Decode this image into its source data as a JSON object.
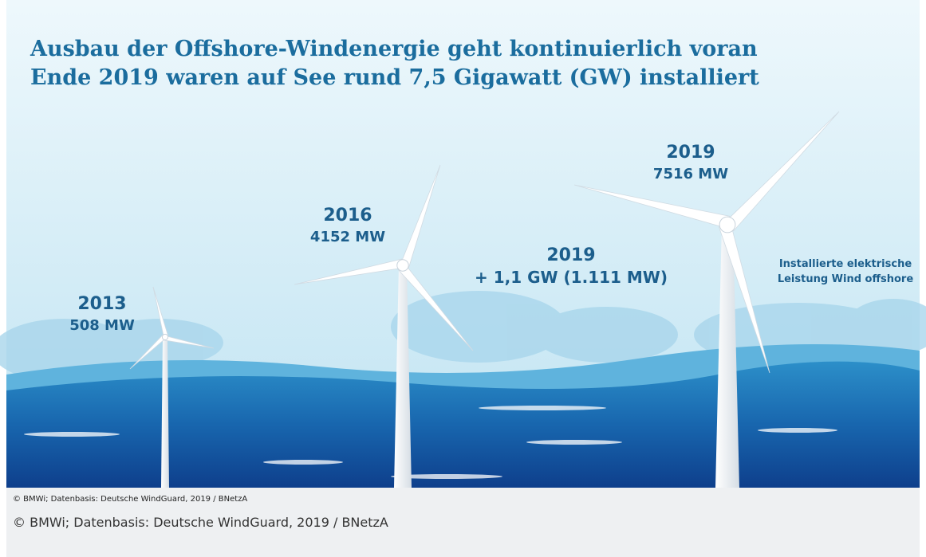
{
  "title": "Ausbau der Offshore-Windenergie geht kontinuierlich voran",
  "subtitle": "Ende 2019 waren auf See rund 7,5 Gigawatt (GW) installiert",
  "turbines": [
    {
      "year": "2013",
      "capacity": "508 MW"
    },
    {
      "year": "2016",
      "capacity": "4152 MW"
    },
    {
      "year": "2019",
      "capacity": "7516 MW"
    }
  ],
  "addition": {
    "year": "2019",
    "text": "+ 1,1 GW (1.111 MW)"
  },
  "legend": [
    "Installierte elektrische",
    "Leistung Wind offshore"
  ],
  "image_credit": "© BMWi; Datenbasis: Deutsche WindGuard, 2019 / BNetzA",
  "caption": "© BMWi; Datenbasis: Deutsche WindGuard, 2019 / BNetzA"
}
